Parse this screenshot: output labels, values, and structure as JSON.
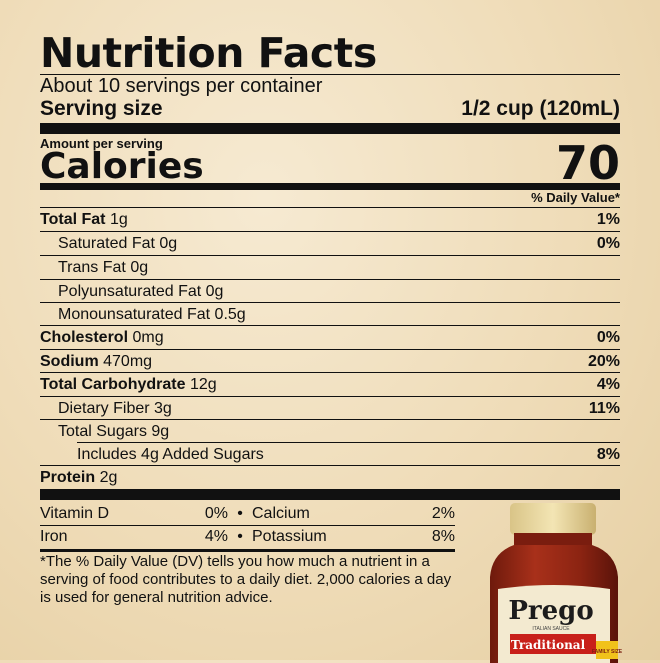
{
  "label": {
    "title": "Nutrition Facts",
    "servings_per_container": "About 10 servings per container",
    "serving_size_label": "Serving size",
    "serving_size_value": "1/2 cup (120mL)",
    "amount_per_serving": "Amount per serving",
    "calories_label": "Calories",
    "calories_value": "70",
    "daily_value_header": "% Daily Value*",
    "nutrients": [
      {
        "name": "Total Fat",
        "amount": "1g",
        "dv": "1%"
      },
      {
        "name": "Saturated Fat",
        "amount": "0g",
        "dv": "0%"
      },
      {
        "name": "Trans Fat",
        "amount": "0g",
        "dv": ""
      },
      {
        "name": "Polyunsaturated Fat",
        "amount": "0g",
        "dv": ""
      },
      {
        "name": "Monounsaturated Fat",
        "amount": "0.5g",
        "dv": ""
      },
      {
        "name": "Cholesterol",
        "amount": "0mg",
        "dv": "0%"
      },
      {
        "name": "Sodium",
        "amount": "470mg",
        "dv": "20%"
      },
      {
        "name": "Total Carbohydrate",
        "amount": "12g",
        "dv": "4%"
      },
      {
        "name": "Dietary Fiber",
        "amount": "3g",
        "dv": "11%"
      },
      {
        "name": "Total Sugars",
        "amount": "9g",
        "dv": ""
      },
      {
        "name": "Includes 4g Added Sugars",
        "amount": "",
        "dv": "8%"
      },
      {
        "name": "Protein",
        "amount": "2g",
        "dv": ""
      }
    ],
    "vitamins": [
      {
        "left_name": "Vitamin D",
        "left_dv": "0%",
        "right_name": "Calcium",
        "right_dv": "2%"
      },
      {
        "left_name": "Iron",
        "left_dv": "4%",
        "right_name": "Potassium",
        "right_dv": "8%"
      }
    ],
    "separator": "•",
    "footnote": "*The % Daily Value (DV) tells you how much a nutrient in a serving of food contributes to a daily diet. 2,000 calories a day is used for general nutrition advice."
  },
  "product": {
    "brand": "Prego",
    "subtitle": "ITALIAN SAUCE",
    "variety": "Traditional",
    "badge": "FAMILY SIZE"
  }
}
